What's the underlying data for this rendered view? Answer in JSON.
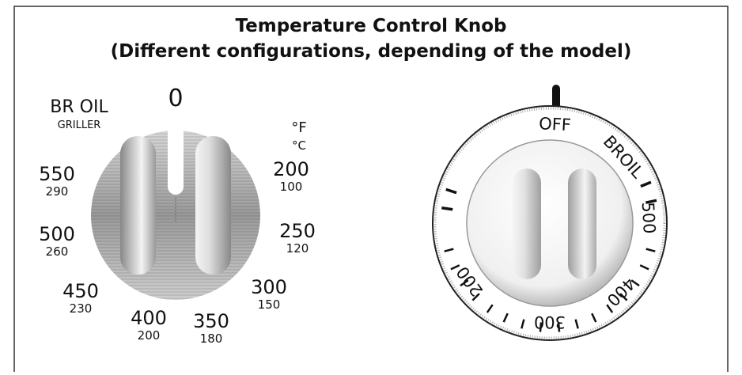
{
  "header": {
    "title": [
      "Temperature Control Knob",
      "(Different configurations, depending of the model)"
    ]
  },
  "left_knob": {
    "zero": "0",
    "broil": "BR OIL",
    "griller": "GRILLER",
    "fahrenheit": "°F",
    "celsius": "°C",
    "settings": [
      {
        "f": "550",
        "c": "290"
      },
      {
        "f": "500",
        "c": "260"
      },
      {
        "f": "450",
        "c": "230"
      },
      {
        "f": "400",
        "c": "200"
      },
      {
        "f": "350",
        "c": "180"
      },
      {
        "f": "300",
        "c": "150"
      },
      {
        "f": "250",
        "c": "120"
      },
      {
        "f": "200",
        "c": "100"
      }
    ]
  },
  "right_knob": {
    "labels": [
      "OFF",
      "BROIL",
      "500",
      "400",
      "300",
      "200"
    ]
  }
}
